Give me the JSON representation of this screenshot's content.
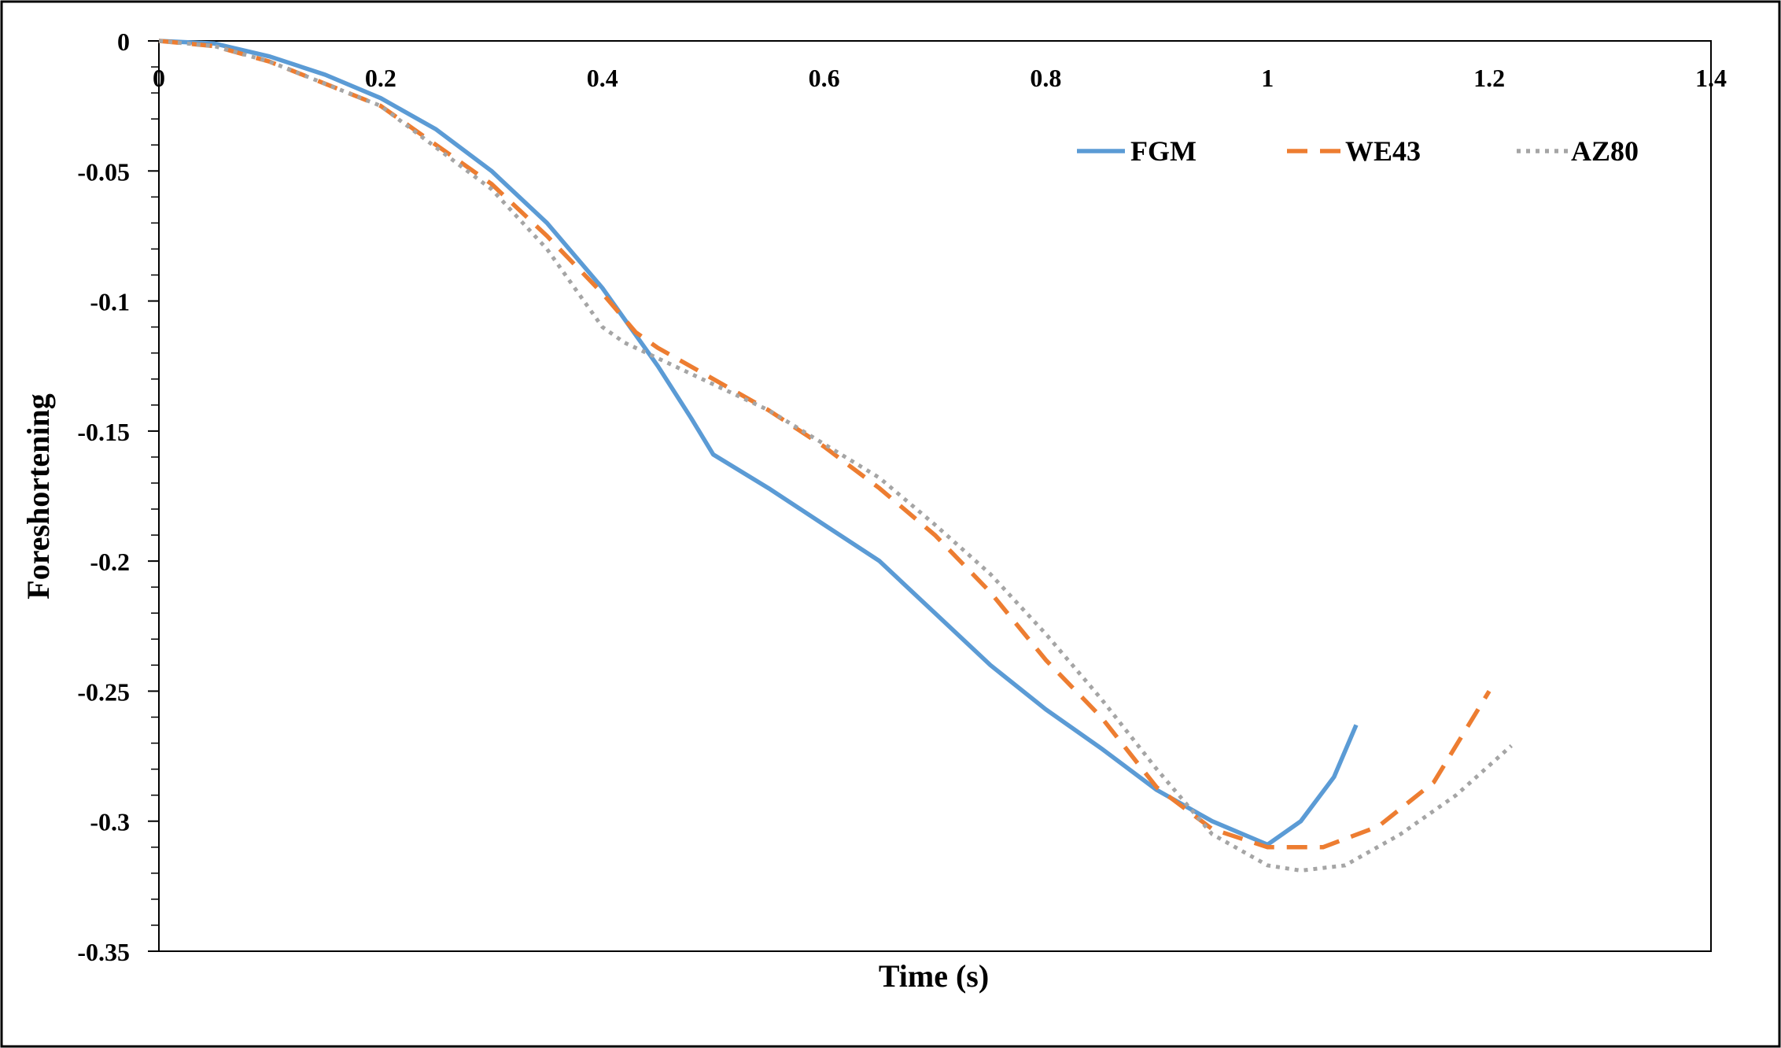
{
  "chart_data": {
    "type": "line",
    "title": "",
    "xlabel": "Time (s)",
    "ylabel": "Foreshortening",
    "xlim": [
      0,
      1.4
    ],
    "ylim": [
      -0.35,
      0
    ],
    "xticks": [
      "0",
      "0.2",
      "0.4",
      "0.6",
      "0.8",
      "1",
      "1.2",
      "1.4"
    ],
    "xtick_values": [
      0,
      0.2,
      0.4,
      0.6,
      0.8,
      1,
      1.2,
      1.4
    ],
    "yticks": [
      "0",
      "-0.05",
      "-0.1",
      "-0.15",
      "-0.2",
      "-0.25",
      "-0.3",
      "-0.35"
    ],
    "ytick_values": [
      0,
      -0.05,
      -0.1,
      -0.15,
      -0.2,
      -0.25,
      -0.3,
      -0.35
    ],
    "grid": false,
    "legend_position": "top-right",
    "series": [
      {
        "name": "FGM",
        "color": "#5b9bd5",
        "style": "solid",
        "x": [
          0,
          0.05,
          0.1,
          0.15,
          0.2,
          0.25,
          0.3,
          0.35,
          0.4,
          0.45,
          0.48,
          0.5,
          0.55,
          0.6,
          0.65,
          0.67,
          0.7,
          0.75,
          0.8,
          0.85,
          0.9,
          0.95,
          1.0,
          1.03,
          1.06,
          1.08
        ],
        "y": [
          0,
          -0.001,
          -0.006,
          -0.013,
          -0.022,
          -0.034,
          -0.05,
          -0.07,
          -0.095,
          -0.125,
          -0.145,
          -0.159,
          -0.172,
          -0.186,
          -0.2,
          -0.208,
          -0.22,
          -0.24,
          -0.257,
          -0.272,
          -0.288,
          -0.3,
          -0.309,
          -0.3,
          -0.283,
          -0.263
        ]
      },
      {
        "name": "WE43",
        "color": "#ed7d31",
        "style": "dashed",
        "x": [
          0,
          0.05,
          0.1,
          0.2,
          0.3,
          0.35,
          0.4,
          0.43,
          0.45,
          0.5,
          0.55,
          0.6,
          0.65,
          0.7,
          0.75,
          0.8,
          0.85,
          0.9,
          0.95,
          1.0,
          1.05,
          1.1,
          1.15,
          1.2
        ],
        "y": [
          0,
          -0.002,
          -0.008,
          -0.025,
          -0.055,
          -0.075,
          -0.097,
          -0.112,
          -0.118,
          -0.13,
          -0.142,
          -0.156,
          -0.172,
          -0.19,
          -0.212,
          -0.238,
          -0.26,
          -0.287,
          -0.303,
          -0.31,
          -0.31,
          -0.302,
          -0.285,
          -0.25
        ]
      },
      {
        "name": "AZ80",
        "color": "#a5a5a5",
        "style": "dotted",
        "x": [
          0,
          0.05,
          0.1,
          0.2,
          0.3,
          0.35,
          0.4,
          0.42,
          0.45,
          0.5,
          0.55,
          0.6,
          0.65,
          0.7,
          0.75,
          0.8,
          0.85,
          0.9,
          0.95,
          1.0,
          1.03,
          1.07,
          1.12,
          1.17,
          1.22
        ],
        "y": [
          0,
          -0.002,
          -0.008,
          -0.025,
          -0.057,
          -0.08,
          -0.11,
          -0.116,
          -0.122,
          -0.132,
          -0.142,
          -0.155,
          -0.168,
          -0.186,
          -0.205,
          -0.228,
          -0.253,
          -0.28,
          -0.305,
          -0.317,
          -0.319,
          -0.317,
          -0.305,
          -0.29,
          -0.271
        ]
      }
    ]
  }
}
